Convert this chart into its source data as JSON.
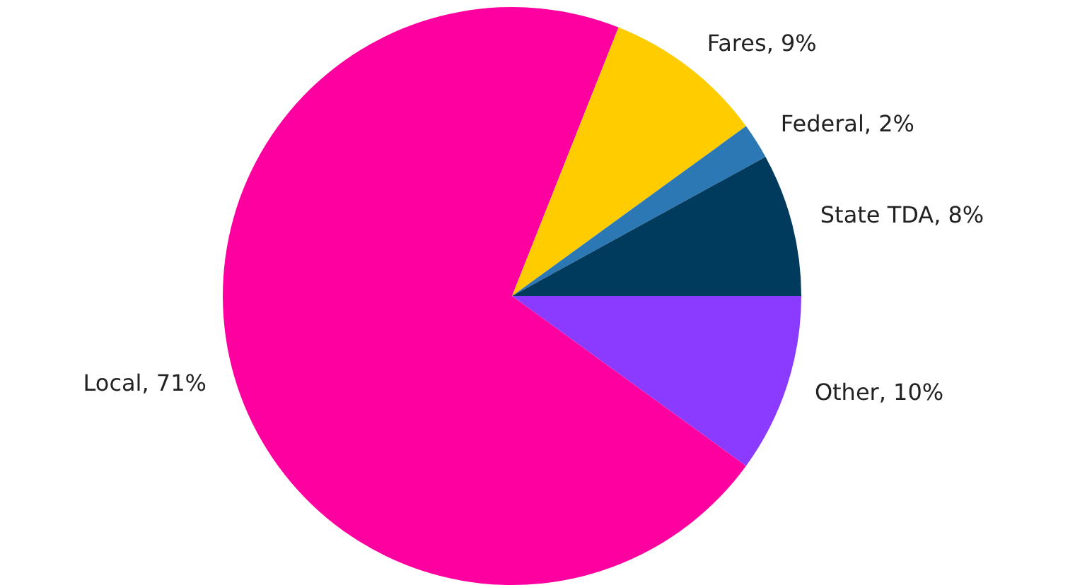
{
  "chart_data": {
    "type": "pie",
    "categories": [
      "Other, 10%",
      "Local, 71%",
      "Fares, 9%",
      "Federal, 2%",
      "State TDA, 8%"
    ],
    "values": [
      10,
      71,
      9,
      2,
      8
    ],
    "colors": [
      "#8a3bff",
      "#ff00a0",
      "#ffcc00",
      "#2b78b4",
      "#003a5c"
    ],
    "legend": false
  }
}
